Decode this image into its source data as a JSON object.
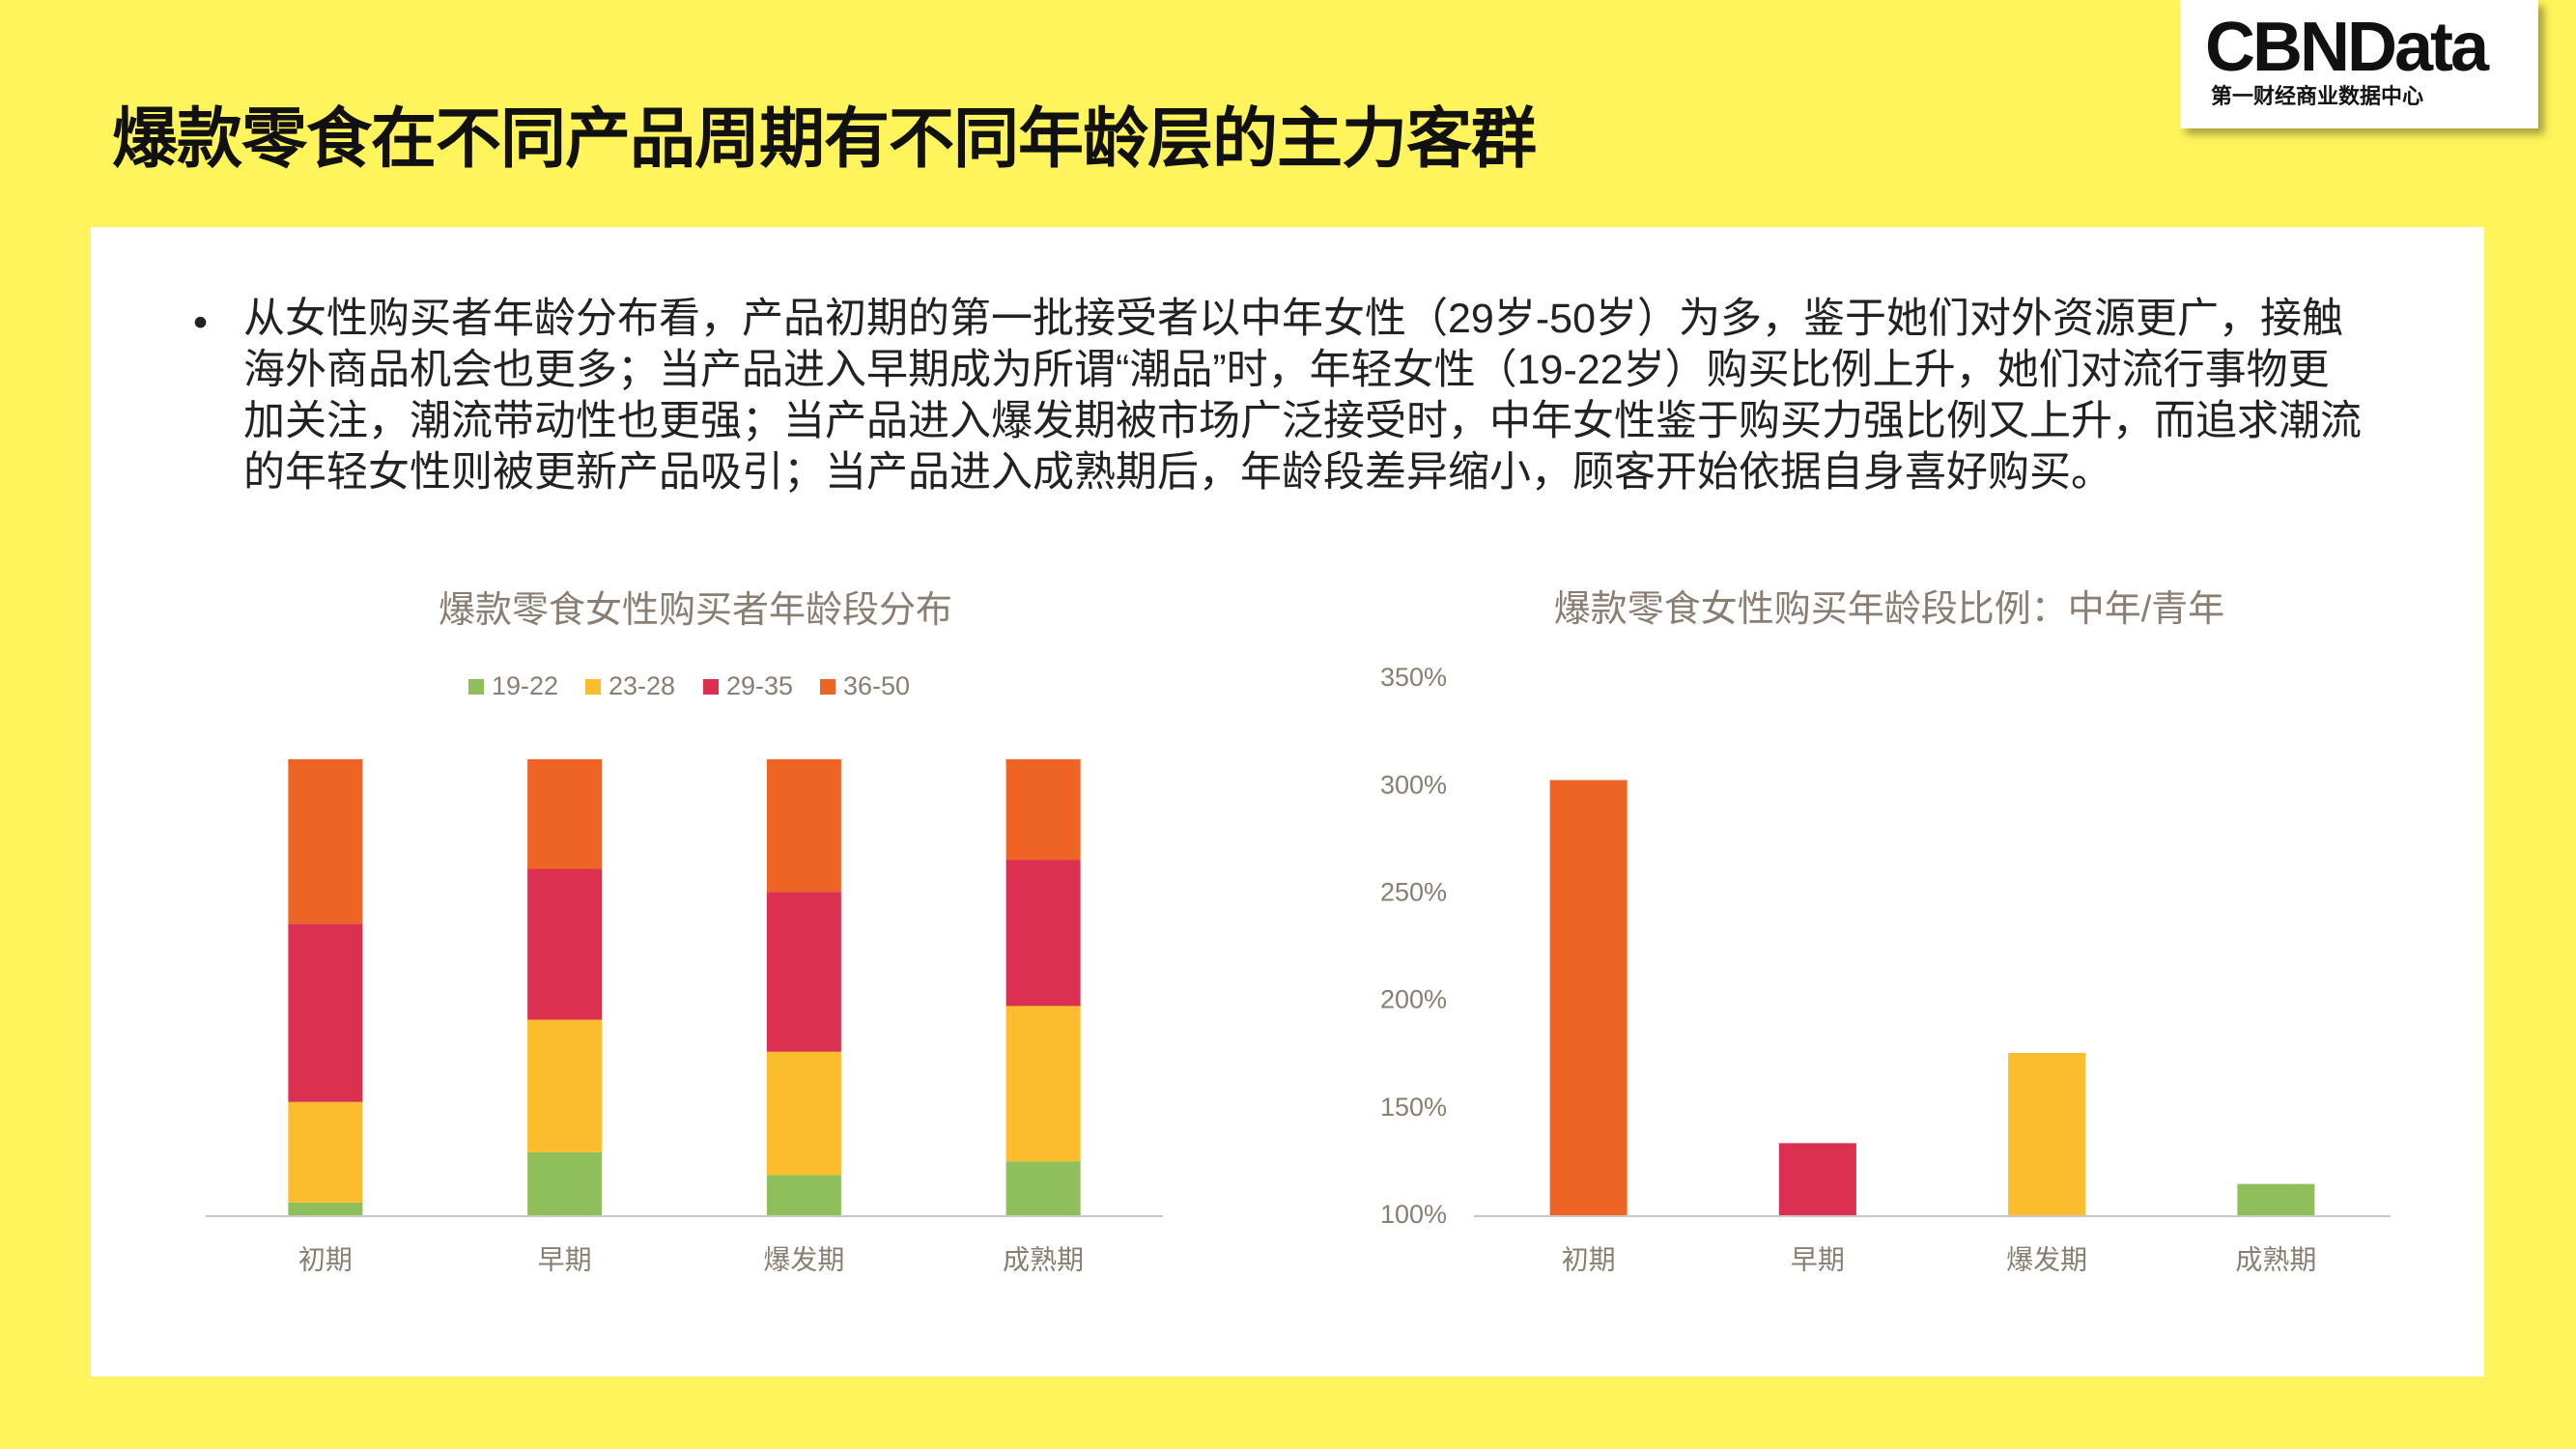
{
  "title": "爆款零食在不同产品周期有不同年龄层的主力客群",
  "logo": {
    "name": "CBNData",
    "subtitle": "第一财经商业数据中心"
  },
  "bullet": "从女性购买者年龄分布看，产品初期的第一批接受者以中年女性（29岁-50岁）为多，鉴于她们对外资源更广，接触海外商品机会也更多；当产品进入早期成为所谓“潮品”时，年轻女性（19-22岁）购买比例上升，她们对流行事物更加关注，潮流带动性也更强；当产品进入爆发期被市场广泛接受时，中年女性鉴于购买力强比例又上升，而追求潮流的年轻女性则被更新产品吸引；当产品进入成熟期后，年龄段差异缩小，顾客开始依据自身喜好购买。",
  "chart_data": [
    {
      "type": "stacked_bar",
      "title": "爆款零食女性购买者年龄段分布",
      "categories": [
        "初期",
        "早期",
        "爆发期",
        "成熟期"
      ],
      "series": [
        {
          "name": "19-22",
          "color": "#8fbf5a",
          "values": [
            3,
            14,
            9,
            12
          ]
        },
        {
          "name": "23-28",
          "color": "#fbbd2e",
          "values": [
            22,
            29,
            27,
            34
          ]
        },
        {
          "name": "29-35",
          "color": "#dc3050",
          "values": [
            39,
            33,
            35,
            32
          ]
        },
        {
          "name": "36-50",
          "color": "#ee6425",
          "values": [
            36,
            24,
            29,
            22
          ]
        }
      ],
      "legend": "top"
    },
    {
      "type": "bar",
      "title": "爆款零食女性购买年龄段比例：中年/青年",
      "categories": [
        "初期",
        "早期",
        "爆发期",
        "成熟期"
      ],
      "values": [
        303,
        134,
        176,
        115
      ],
      "colors": [
        "#ee6425",
        "#dc3050",
        "#fbbd2e",
        "#8fbf5a"
      ],
      "ylim": [
        100,
        350
      ],
      "yticks": [
        {
          "value": 100,
          "label": "100%"
        },
        {
          "value": 150,
          "label": "150%"
        },
        {
          "value": 200,
          "label": "200%"
        },
        {
          "value": 250,
          "label": "250%"
        },
        {
          "value": 300,
          "label": "300%"
        },
        {
          "value": 350,
          "label": "350%"
        }
      ],
      "grid": false
    }
  ]
}
